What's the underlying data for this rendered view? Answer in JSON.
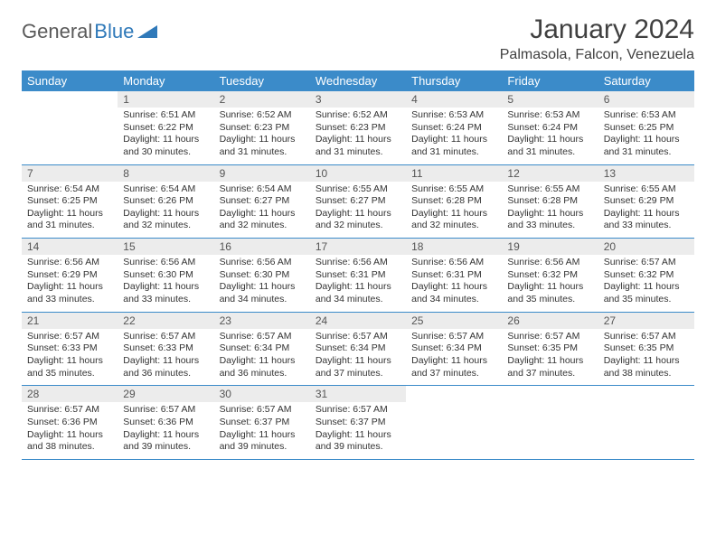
{
  "brand": {
    "part1": "General",
    "part2": "Blue"
  },
  "title": "January 2024",
  "location": "Palmasola, Falcon, Venezuela",
  "colors": {
    "header_bg": "#3b8bc9",
    "header_text": "#ffffff",
    "daynum_bg": "#ececec",
    "rule": "#3b8bc9",
    "body_text": "#333333",
    "logo_gray": "#5a5a5a",
    "logo_blue": "#2f79b9"
  },
  "weekdays": [
    "Sunday",
    "Monday",
    "Tuesday",
    "Wednesday",
    "Thursday",
    "Friday",
    "Saturday"
  ],
  "weeks": [
    [
      null,
      {
        "n": "1",
        "sr": "6:51 AM",
        "ss": "6:22 PM",
        "dl": "11 hours and 30 minutes."
      },
      {
        "n": "2",
        "sr": "6:52 AM",
        "ss": "6:23 PM",
        "dl": "11 hours and 31 minutes."
      },
      {
        "n": "3",
        "sr": "6:52 AM",
        "ss": "6:23 PM",
        "dl": "11 hours and 31 minutes."
      },
      {
        "n": "4",
        "sr": "6:53 AM",
        "ss": "6:24 PM",
        "dl": "11 hours and 31 minutes."
      },
      {
        "n": "5",
        "sr": "6:53 AM",
        "ss": "6:24 PM",
        "dl": "11 hours and 31 minutes."
      },
      {
        "n": "6",
        "sr": "6:53 AM",
        "ss": "6:25 PM",
        "dl": "11 hours and 31 minutes."
      }
    ],
    [
      {
        "n": "7",
        "sr": "6:54 AM",
        "ss": "6:25 PM",
        "dl": "11 hours and 31 minutes."
      },
      {
        "n": "8",
        "sr": "6:54 AM",
        "ss": "6:26 PM",
        "dl": "11 hours and 32 minutes."
      },
      {
        "n": "9",
        "sr": "6:54 AM",
        "ss": "6:27 PM",
        "dl": "11 hours and 32 minutes."
      },
      {
        "n": "10",
        "sr": "6:55 AM",
        "ss": "6:27 PM",
        "dl": "11 hours and 32 minutes."
      },
      {
        "n": "11",
        "sr": "6:55 AM",
        "ss": "6:28 PM",
        "dl": "11 hours and 32 minutes."
      },
      {
        "n": "12",
        "sr": "6:55 AM",
        "ss": "6:28 PM",
        "dl": "11 hours and 33 minutes."
      },
      {
        "n": "13",
        "sr": "6:55 AM",
        "ss": "6:29 PM",
        "dl": "11 hours and 33 minutes."
      }
    ],
    [
      {
        "n": "14",
        "sr": "6:56 AM",
        "ss": "6:29 PM",
        "dl": "11 hours and 33 minutes."
      },
      {
        "n": "15",
        "sr": "6:56 AM",
        "ss": "6:30 PM",
        "dl": "11 hours and 33 minutes."
      },
      {
        "n": "16",
        "sr": "6:56 AM",
        "ss": "6:30 PM",
        "dl": "11 hours and 34 minutes."
      },
      {
        "n": "17",
        "sr": "6:56 AM",
        "ss": "6:31 PM",
        "dl": "11 hours and 34 minutes."
      },
      {
        "n": "18",
        "sr": "6:56 AM",
        "ss": "6:31 PM",
        "dl": "11 hours and 34 minutes."
      },
      {
        "n": "19",
        "sr": "6:56 AM",
        "ss": "6:32 PM",
        "dl": "11 hours and 35 minutes."
      },
      {
        "n": "20",
        "sr": "6:57 AM",
        "ss": "6:32 PM",
        "dl": "11 hours and 35 minutes."
      }
    ],
    [
      {
        "n": "21",
        "sr": "6:57 AM",
        "ss": "6:33 PM",
        "dl": "11 hours and 35 minutes."
      },
      {
        "n": "22",
        "sr": "6:57 AM",
        "ss": "6:33 PM",
        "dl": "11 hours and 36 minutes."
      },
      {
        "n": "23",
        "sr": "6:57 AM",
        "ss": "6:34 PM",
        "dl": "11 hours and 36 minutes."
      },
      {
        "n": "24",
        "sr": "6:57 AM",
        "ss": "6:34 PM",
        "dl": "11 hours and 37 minutes."
      },
      {
        "n": "25",
        "sr": "6:57 AM",
        "ss": "6:34 PM",
        "dl": "11 hours and 37 minutes."
      },
      {
        "n": "26",
        "sr": "6:57 AM",
        "ss": "6:35 PM",
        "dl": "11 hours and 37 minutes."
      },
      {
        "n": "27",
        "sr": "6:57 AM",
        "ss": "6:35 PM",
        "dl": "11 hours and 38 minutes."
      }
    ],
    [
      {
        "n": "28",
        "sr": "6:57 AM",
        "ss": "6:36 PM",
        "dl": "11 hours and 38 minutes."
      },
      {
        "n": "29",
        "sr": "6:57 AM",
        "ss": "6:36 PM",
        "dl": "11 hours and 39 minutes."
      },
      {
        "n": "30",
        "sr": "6:57 AM",
        "ss": "6:37 PM",
        "dl": "11 hours and 39 minutes."
      },
      {
        "n": "31",
        "sr": "6:57 AM",
        "ss": "6:37 PM",
        "dl": "11 hours and 39 minutes."
      },
      null,
      null,
      null
    ]
  ],
  "labels": {
    "sunrise": "Sunrise:",
    "sunset": "Sunset:",
    "daylight": "Daylight:"
  }
}
